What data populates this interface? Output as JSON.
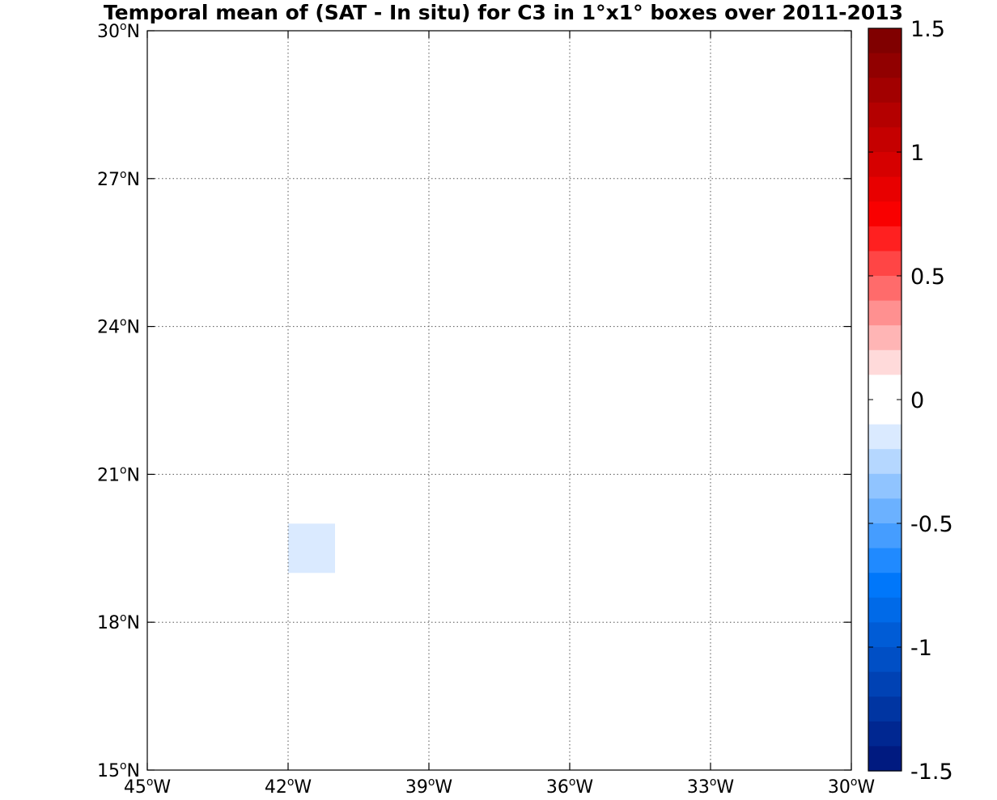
{
  "chart_data": {
    "type": "heatmap",
    "title": "Temporal mean of (SAT - In situ) for C3 in 1°x1° boxes over 2011-2013",
    "xlim": [
      -45,
      -30
    ],
    "ylim": [
      15,
      30
    ],
    "x_ticks": [
      {
        "value": -45,
        "num": "45",
        "deg": "o",
        "hem": "W"
      },
      {
        "value": -42,
        "num": "42",
        "deg": "o",
        "hem": "W"
      },
      {
        "value": -39,
        "num": "39",
        "deg": "o",
        "hem": "W"
      },
      {
        "value": -36,
        "num": "36",
        "deg": "o",
        "hem": "W"
      },
      {
        "value": -33,
        "num": "33",
        "deg": "o",
        "hem": "W"
      },
      {
        "value": -30,
        "num": "30",
        "deg": "o",
        "hem": "W"
      }
    ],
    "y_ticks": [
      {
        "value": 15,
        "num": "15",
        "deg": "o",
        "hem": "N"
      },
      {
        "value": 18,
        "num": "18",
        "deg": "o",
        "hem": "N"
      },
      {
        "value": 21,
        "num": "21",
        "deg": "o",
        "hem": "N"
      },
      {
        "value": 24,
        "num": "24",
        "deg": "o",
        "hem": "N"
      },
      {
        "value": 27,
        "num": "27",
        "deg": "o",
        "hem": "N"
      },
      {
        "value": 30,
        "num": "30",
        "deg": "o",
        "hem": "N"
      }
    ],
    "grid": true,
    "box_size_deg": 1,
    "cells": [
      {
        "lon": -37,
        "lat": 28,
        "value": -0.05
      },
      {
        "lon": -42,
        "lat": 27,
        "value": 0.05
      },
      {
        "lon": -41,
        "lat": 27,
        "value": -0.05
      },
      {
        "lon": -39,
        "lat": 25,
        "value": -0.05
      },
      {
        "lon": -38,
        "lat": 24,
        "value": 0.05
      },
      {
        "lon": -43,
        "lat": 23,
        "value": 0.05
      },
      {
        "lon": -38,
        "lat": 23,
        "value": -0.05
      },
      {
        "lon": -40,
        "lat": 22,
        "value": -0.05
      },
      {
        "lon": -39,
        "lat": 22,
        "value": 0.05
      },
      {
        "lon": -37,
        "lat": 22,
        "value": -0.05
      },
      {
        "lon": -40,
        "lat": 21,
        "value": -0.05
      },
      {
        "lon": -42,
        "lat": 19,
        "value": -0.15
      }
    ],
    "colorbar": {
      "range": [
        -1.5,
        1.5
      ],
      "step": 0.1,
      "ticks": [
        {
          "value": 1.5,
          "label": "1.5"
        },
        {
          "value": 1,
          "label": "1"
        },
        {
          "value": 0.5,
          "label": "0.5"
        },
        {
          "value": 0,
          "label": "0"
        },
        {
          "value": -0.5,
          "label": "-0.5"
        },
        {
          "value": -1,
          "label": "-1"
        },
        {
          "value": -1.5,
          "label": "-1.5"
        }
      ],
      "colors_top_to_bottom": [
        "#800000",
        "#910000",
        "#a20000",
        "#b40000",
        "#c50000",
        "#d60000",
        "#e80000",
        "#f90000",
        "#ff2020",
        "#ff4545",
        "#ff6b6b",
        "#ff9090",
        "#ffb5b5",
        "#ffdada",
        "#ffffff",
        "#ffffff",
        "#daeaff",
        "#b5d7ff",
        "#90c4ff",
        "#6bb1ff",
        "#459dff",
        "#208aff",
        "#0077fa",
        "#006ae8",
        "#005cd6",
        "#004fc5",
        "#0042b4",
        "#0035a2",
        "#002791",
        "#001a80"
      ]
    }
  }
}
